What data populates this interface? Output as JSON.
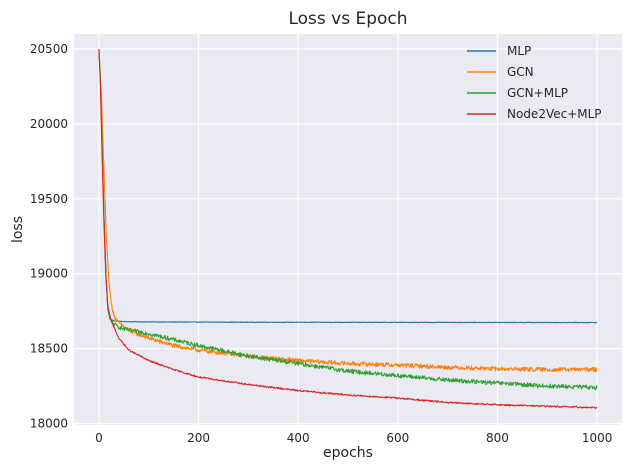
{
  "chart_data": {
    "type": "line",
    "title": "Loss vs Epoch",
    "xlabel": "epochs",
    "ylabel": "loss",
    "xlim": [
      -50,
      1050
    ],
    "ylim": [
      17990,
      20600
    ],
    "xticks": [
      0,
      200,
      400,
      600,
      800,
      1000
    ],
    "yticks": [
      18000,
      18500,
      19000,
      19500,
      20000,
      20500
    ],
    "grid": true,
    "legend_position": "top-right",
    "series": [
      {
        "name": "MLP",
        "color": "#1f77b4",
        "noise": 2,
        "points": [
          [
            0,
            20500
          ],
          [
            3,
            20300
          ],
          [
            6,
            19900
          ],
          [
            10,
            19400
          ],
          [
            14,
            19000
          ],
          [
            18,
            18760
          ],
          [
            22,
            18700
          ],
          [
            30,
            18685
          ],
          [
            50,
            18680
          ],
          [
            100,
            18678
          ],
          [
            300,
            18676
          ],
          [
            600,
            18675
          ],
          [
            1000,
            18674
          ]
        ]
      },
      {
        "name": "GCN",
        "color": "#ff7f0e",
        "noise": 14,
        "points": [
          [
            0,
            20480
          ],
          [
            5,
            20200
          ],
          [
            10,
            19700
          ],
          [
            15,
            19250
          ],
          [
            20,
            18950
          ],
          [
            25,
            18800
          ],
          [
            30,
            18720
          ],
          [
            40,
            18670
          ],
          [
            60,
            18620
          ],
          [
            100,
            18570
          ],
          [
            150,
            18520
          ],
          [
            200,
            18490
          ],
          [
            300,
            18450
          ],
          [
            400,
            18420
          ],
          [
            500,
            18400
          ],
          [
            600,
            18390
          ],
          [
            700,
            18375
          ],
          [
            800,
            18365
          ],
          [
            900,
            18360
          ],
          [
            1000,
            18360
          ]
        ]
      },
      {
        "name": "GCN+MLP",
        "color": "#2ca02c",
        "noise": 14,
        "points": [
          [
            0,
            20500
          ],
          [
            3,
            20300
          ],
          [
            6,
            19900
          ],
          [
            10,
            19400
          ],
          [
            14,
            19000
          ],
          [
            18,
            18760
          ],
          [
            22,
            18700
          ],
          [
            30,
            18660
          ],
          [
            50,
            18630
          ],
          [
            100,
            18600
          ],
          [
            200,
            18520
          ],
          [
            300,
            18450
          ],
          [
            400,
            18400
          ],
          [
            500,
            18350
          ],
          [
            600,
            18320
          ],
          [
            700,
            18290
          ],
          [
            800,
            18270
          ],
          [
            900,
            18250
          ],
          [
            1000,
            18240
          ]
        ]
      },
      {
        "name": "Node2Vec+MLP",
        "color": "#d62728",
        "noise": 5,
        "points": [
          [
            0,
            20500
          ],
          [
            3,
            20250
          ],
          [
            6,
            19850
          ],
          [
            10,
            19350
          ],
          [
            14,
            18980
          ],
          [
            18,
            18780
          ],
          [
            25,
            18680
          ],
          [
            40,
            18570
          ],
          [
            60,
            18490
          ],
          [
            100,
            18420
          ],
          [
            150,
            18360
          ],
          [
            200,
            18310
          ],
          [
            300,
            18260
          ],
          [
            400,
            18220
          ],
          [
            500,
            18190
          ],
          [
            600,
            18170
          ],
          [
            700,
            18140
          ],
          [
            800,
            18125
          ],
          [
            900,
            18115
          ],
          [
            1000,
            18105
          ]
        ]
      }
    ]
  }
}
